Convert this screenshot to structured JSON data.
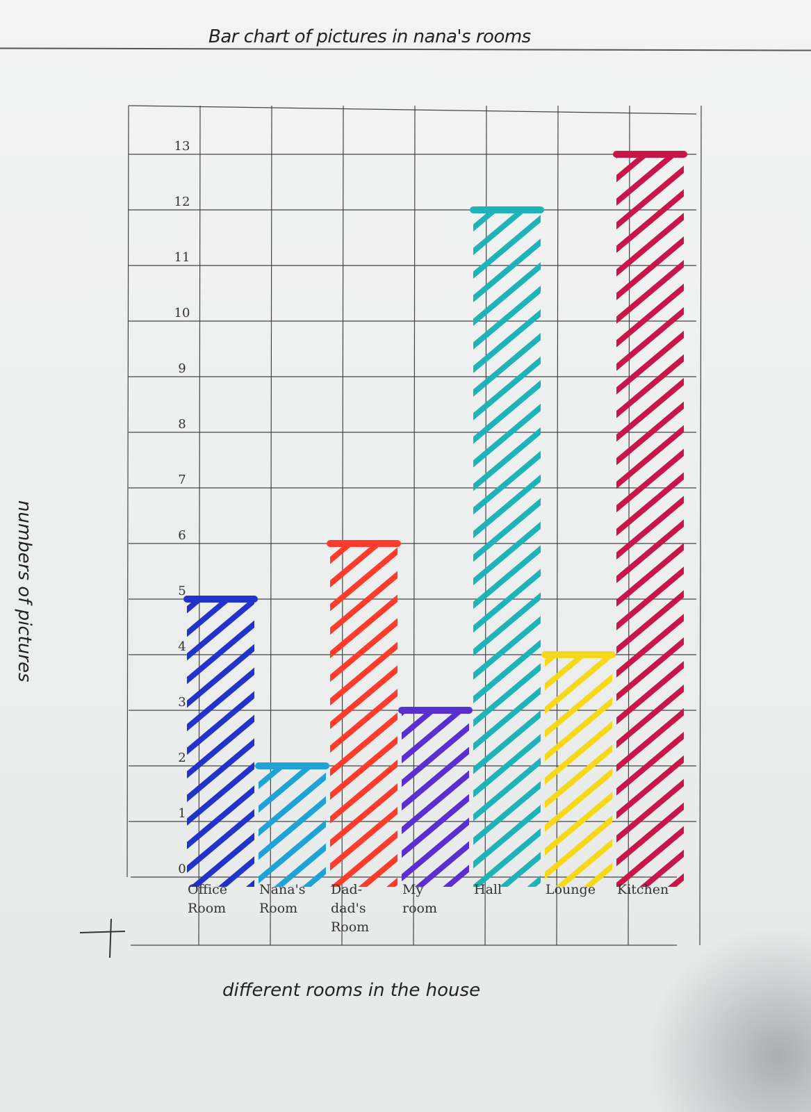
{
  "chart_data": {
    "type": "bar",
    "title": "Bar chart of pictures in nana's rooms",
    "ylabel": "numbers of pictures",
    "xlabel": "different rooms in the house",
    "categories": [
      [
        "Office",
        "Room"
      ],
      [
        "Nana's",
        "Room"
      ],
      [
        "Dad-",
        "dad's",
        "Room"
      ],
      [
        "My",
        "room"
      ],
      [
        "Hall"
      ],
      [
        "Lounge"
      ],
      [
        "Kitchen"
      ]
    ],
    "values": [
      5,
      2,
      6,
      3,
      12,
      4,
      13
    ],
    "colors": [
      "#2233cc",
      "#1fa3d6",
      "#ff3b2b",
      "#5a2fd1",
      "#1db3b8",
      "#f6d81a",
      "#c8154a"
    ],
    "hatch": "diagonal",
    "y_ticks": [
      0,
      1,
      2,
      3,
      4,
      5,
      6,
      7,
      8,
      9,
      10,
      11,
      12,
      13
    ],
    "ylim": [
      0,
      14
    ],
    "grid": true
  }
}
